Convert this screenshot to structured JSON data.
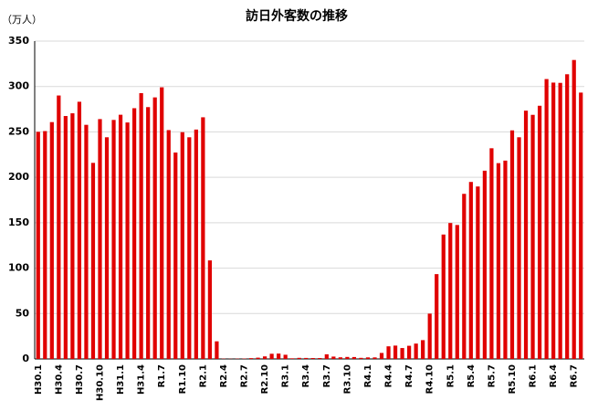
{
  "chart_data": {
    "type": "bar",
    "title": "訪日外客数の推移",
    "y_label": "（万人）",
    "categories": [
      "H30.1",
      null,
      null,
      "H30.4",
      null,
      null,
      "H30.7",
      null,
      null,
      "H30.10",
      null,
      null,
      "H31.1",
      null,
      null,
      "H31.4",
      null,
      null,
      "R1.7",
      null,
      null,
      "R1.10",
      null,
      null,
      "R2.1",
      null,
      null,
      "R2.4",
      null,
      null,
      "R2.7",
      null,
      null,
      "R2.10",
      null,
      null,
      "R3.1",
      null,
      null,
      "R3.4",
      null,
      null,
      "R3.7",
      null,
      null,
      "R3.10",
      null,
      null,
      "R4.1",
      null,
      null,
      "R4.4",
      null,
      null,
      "R4.7",
      null,
      null,
      "R4.10",
      null,
      null,
      "R5.1",
      null,
      null,
      "R5.4",
      null,
      null,
      "R5.7",
      null,
      null,
      "R5.10",
      null,
      null,
      "R6.1",
      null,
      null,
      "R6.4",
      null,
      null,
      "R6.7",
      null
    ],
    "values": [
      250.1,
      250.9,
      260.8,
      290.1,
      267.5,
      270.5,
      283.2,
      257.8,
      215.9,
      264.1,
      244.1,
      263.2,
      268.9,
      260.4,
      276.1,
      292.7,
      277.3,
      288.0,
      299.1,
      252.0,
      227.3,
      249.7,
      244.1,
      252.6,
      266.1,
      108.5,
      19.4,
      0.3,
      0.2,
      0.3,
      0.4,
      0.9,
      1.4,
      2.8,
      5.7,
      5.9,
      4.6,
      0.7,
      1.2,
      1.1,
      1.0,
      1.0,
      5.1,
      2.6,
      1.8,
      2.2,
      2.1,
      1.2,
      1.7,
      1.7,
      6.6,
      13.9,
      14.7,
      12.0,
      14.5,
      16.9,
      20.7,
      49.9,
      93.4,
      137.0,
      149.7,
      147.5,
      181.8,
      194.9,
      189.9,
      207.3,
      232.0,
      215.6,
      218.4,
      251.7,
      244.1,
      273.4,
      268.8,
      278.8,
      308.2,
      304.3,
      304.0,
      313.5,
      329.2,
      293.3
    ],
    "color": "#e00000",
    "ylim": [
      0,
      350
    ],
    "yticks": [
      0,
      50,
      100,
      150,
      200,
      250,
      300,
      350
    ],
    "grid": true
  }
}
